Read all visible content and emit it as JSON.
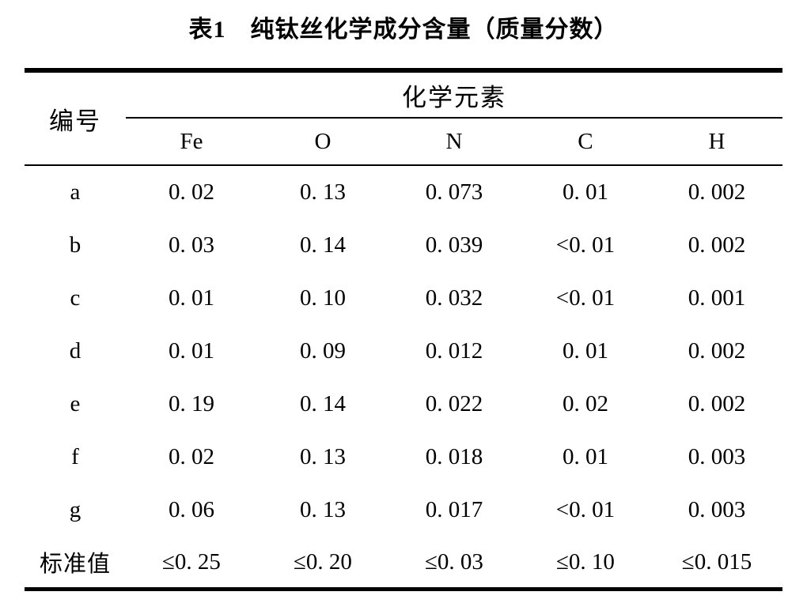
{
  "title": "表1　纯钛丝化学成分含量（质量分数）",
  "table": {
    "id_header": "编号",
    "group_header": "化学元素",
    "element_headers": [
      "Fe",
      "O",
      "N",
      "C",
      "H"
    ],
    "rows": [
      {
        "id": "a",
        "values": [
          "0. 02",
          "0. 13",
          "0. 073",
          "0. 01",
          "0. 002"
        ]
      },
      {
        "id": "b",
        "values": [
          "0. 03",
          "0. 14",
          "0. 039",
          "<0. 01",
          "0. 002"
        ]
      },
      {
        "id": "c",
        "values": [
          "0. 01",
          "0. 10",
          "0. 032",
          "<0. 01",
          "0. 001"
        ]
      },
      {
        "id": "d",
        "values": [
          "0. 01",
          "0. 09",
          "0. 012",
          "0. 01",
          "0. 002"
        ]
      },
      {
        "id": "e",
        "values": [
          "0. 19",
          "0. 14",
          "0. 022",
          "0. 02",
          "0. 002"
        ]
      },
      {
        "id": "f",
        "values": [
          "0. 02",
          "0. 13",
          "0. 018",
          "0. 01",
          "0. 003"
        ]
      },
      {
        "id": "g",
        "values": [
          "0. 06",
          "0. 13",
          "0. 017",
          "<0. 01",
          "0. 003"
        ]
      },
      {
        "id": "标准值",
        "values": [
          "≤0. 25",
          "≤0. 20",
          "≤0. 03",
          "≤0. 10",
          "≤0. 015"
        ]
      }
    ]
  },
  "colors": {
    "text": "#000000",
    "background": "#ffffff",
    "rule": "#000000"
  }
}
